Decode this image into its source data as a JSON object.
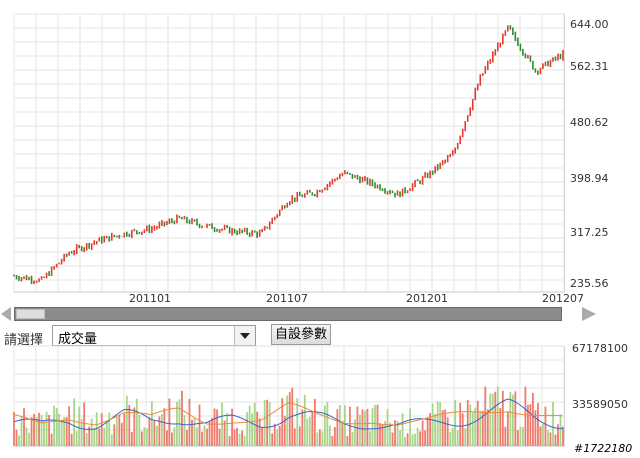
{
  "price_axis": {
    "labels": [
      "644.00",
      "562.31",
      "480.62",
      "398.94",
      "317.25",
      "235.56"
    ]
  },
  "time_axis": {
    "labels": [
      "201101",
      "201107",
      "201201",
      "201207"
    ]
  },
  "selector": {
    "prompt": "請選擇",
    "selected": "成交量"
  },
  "custom_button": {
    "label": "自設參數"
  },
  "volume_axis": {
    "top": "67178100",
    "mid": "33589050"
  },
  "watermark": {
    "text": "#1722180"
  },
  "colors": {
    "up": "#e23a2c",
    "down": "#2d8a2d",
    "vol_up": "#f07a6c",
    "vol_down": "#a7d68a",
    "ma1": "#3366cc",
    "ma2": "#f08a3c",
    "grid": "#e4e4e4"
  },
  "chart_data": [
    {
      "type": "line",
      "title": "",
      "ylim": [
        235.56,
        644.0
      ],
      "x_ticks": [
        "201101",
        "201107",
        "201201",
        "201207"
      ],
      "x": [
        0,
        5,
        10,
        15,
        20,
        25,
        30,
        35,
        40,
        45,
        50,
        55,
        60,
        65,
        70,
        75,
        80,
        85,
        90,
        95,
        100
      ],
      "values": [
        245,
        238,
        282,
        300,
        312,
        320,
        336,
        324,
        316,
        312,
        366,
        378,
        408,
        392,
        374,
        402,
        438,
        560,
        638,
        570,
        596
      ]
    },
    {
      "type": "bar",
      "title": "",
      "ylim": [
        0,
        67178100
      ],
      "x": [
        0,
        5,
        10,
        15,
        20,
        25,
        30,
        35,
        40,
        45,
        50,
        55,
        60,
        65,
        70,
        75,
        80,
        85,
        90,
        95,
        100
      ],
      "values": [
        20000000,
        16000000,
        22000000,
        18000000,
        24000000,
        20000000,
        26000000,
        18000000,
        20000000,
        19000000,
        28000000,
        22000000,
        18000000,
        20000000,
        16000000,
        18000000,
        22000000,
        26000000,
        30000000,
        24000000,
        20000000
      ]
    }
  ]
}
